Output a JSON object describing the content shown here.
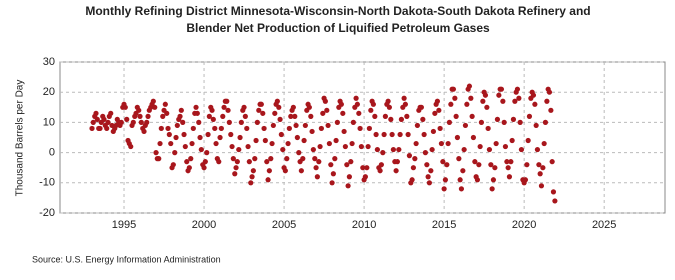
{
  "chart_data": {
    "type": "scatter",
    "title": [
      "Monthly Refining District Minnesota-Wisconsin-North Dakota-South Dakota Refinery and",
      "Blender Net Production of Liquified Petroleum Gases"
    ],
    "y_label": "Thousand Barrels per Day",
    "source": "Source: U.S. Energy Information Administration",
    "xlim": [
      1991,
      2028.8
    ],
    "xticks": [
      1995,
      2000,
      2005,
      2010,
      2015,
      2020,
      2025
    ],
    "ylim": [
      -20,
      30
    ],
    "yticks": [
      -20,
      -10,
      0,
      10,
      20,
      30
    ],
    "grid": true,
    "series": [
      {
        "color": "#a8161c",
        "x": [
          1993.0,
          1993.08,
          1993.17,
          1993.25,
          1993.33,
          1993.42,
          1993.5,
          1993.58,
          1993.67,
          1993.75,
          1993.83,
          1993.92,
          1994.0,
          1994.08,
          1994.17,
          1994.25,
          1994.33,
          1994.42,
          1994.5,
          1994.58,
          1994.67,
          1994.75,
          1994.83,
          1994.92,
          1995.0,
          1995.08,
          1995.17,
          1995.25,
          1995.33,
          1995.42,
          1995.5,
          1995.58,
          1995.67,
          1995.75,
          1995.83,
          1995.92,
          1996.0,
          1996.08,
          1996.17,
          1996.25,
          1996.33,
          1996.42,
          1996.5,
          1996.58,
          1996.67,
          1996.75,
          1996.83,
          1996.92,
          1997.0,
          1997.08,
          1997.17,
          1997.25,
          1997.33,
          1997.42,
          1997.5,
          1997.58,
          1997.67,
          1997.75,
          1997.83,
          1997.92,
          1998.0,
          1998.08,
          1998.17,
          1998.25,
          1998.33,
          1998.42,
          1998.5,
          1998.58,
          1998.67,
          1998.75,
          1998.83,
          1998.92,
          1999.0,
          1999.08,
          1999.17,
          1999.25,
          1999.33,
          1999.42,
          1999.5,
          1999.58,
          1999.67,
          1999.75,
          1999.83,
          1999.92,
          2000.0,
          2000.08,
          2000.17,
          2000.25,
          2000.33,
          2000.42,
          2000.5,
          2000.58,
          2000.67,
          2000.75,
          2000.83,
          2000.92,
          2001.0,
          2001.08,
          2001.17,
          2001.25,
          2001.33,
          2001.42,
          2001.5,
          2001.58,
          2001.67,
          2001.75,
          2001.83,
          2001.92,
          2002.0,
          2002.08,
          2002.17,
          2002.25,
          2002.33,
          2002.42,
          2002.5,
          2002.58,
          2002.67,
          2002.75,
          2002.83,
          2002.92,
          2003.0,
          2003.08,
          2003.17,
          2003.25,
          2003.33,
          2003.42,
          2003.5,
          2003.58,
          2003.67,
          2003.75,
          2003.83,
          2003.92,
          2004.0,
          2004.08,
          2004.17,
          2004.25,
          2004.33,
          2004.42,
          2004.5,
          2004.58,
          2004.67,
          2004.75,
          2004.83,
          2004.92,
          2005.0,
          2005.08,
          2005.17,
          2005.25,
          2005.33,
          2005.42,
          2005.5,
          2005.58,
          2005.67,
          2005.75,
          2005.83,
          2005.92,
          2006.0,
          2006.08,
          2006.17,
          2006.25,
          2006.33,
          2006.42,
          2006.5,
          2006.58,
          2006.67,
          2006.75,
          2006.83,
          2006.92,
          2007.0,
          2007.08,
          2007.17,
          2007.25,
          2007.33,
          2007.42,
          2007.5,
          2007.58,
          2007.67,
          2007.75,
          2007.83,
          2007.92,
          2008.0,
          2008.08,
          2008.17,
          2008.25,
          2008.33,
          2008.42,
          2008.5,
          2008.58,
          2008.67,
          2008.75,
          2008.83,
          2008.92,
          2009.0,
          2009.08,
          2009.17,
          2009.25,
          2009.33,
          2009.42,
          2009.5,
          2009.58,
          2009.67,
          2009.75,
          2009.83,
          2009.92,
          2010.0,
          2010.08,
          2010.17,
          2010.25,
          2010.33,
          2010.42,
          2010.5,
          2010.58,
          2010.67,
          2010.75,
          2010.83,
          2010.92,
          2011.0,
          2011.08,
          2011.17,
          2011.25,
          2011.33,
          2011.42,
          2011.5,
          2011.58,
          2011.67,
          2011.75,
          2011.83,
          2011.92,
          2012.0,
          2012.08,
          2012.17,
          2012.25,
          2012.33,
          2012.42,
          2012.5,
          2012.58,
          2012.67,
          2012.75,
          2012.83,
          2012.92,
          2013.0,
          2013.08,
          2013.17,
          2013.25,
          2013.33,
          2013.42,
          2013.5,
          2013.58,
          2013.67,
          2013.75,
          2013.83,
          2013.92,
          2014.0,
          2014.08,
          2014.17,
          2014.25,
          2014.33,
          2014.42,
          2014.5,
          2014.58,
          2014.67,
          2014.75,
          2014.83,
          2014.92,
          2015.0,
          2015.08,
          2015.17,
          2015.25,
          2015.33,
          2015.42,
          2015.5,
          2015.58,
          2015.67,
          2015.75,
          2015.83,
          2015.92,
          2016.0,
          2016.08,
          2016.17,
          2016.25,
          2016.33,
          2016.42,
          2016.5,
          2016.58,
          2016.67,
          2016.75,
          2016.83,
          2016.92,
          2017.0,
          2017.08,
          2017.17,
          2017.25,
          2017.33,
          2017.42,
          2017.5,
          2017.58,
          2017.67,
          2017.75,
          2017.83,
          2017.92,
          2018.0,
          2018.08,
          2018.17,
          2018.25,
          2018.33,
          2018.42,
          2018.5,
          2018.58,
          2018.67,
          2018.75,
          2018.83,
          2018.92,
          2019.0,
          2019.08,
          2019.17,
          2019.25,
          2019.33,
          2019.42,
          2019.5,
          2019.58,
          2019.67,
          2019.75,
          2019.83,
          2019.92,
          2020.0,
          2020.08,
          2020.17,
          2020.25,
          2020.33,
          2020.42,
          2020.5,
          2020.58,
          2020.67,
          2020.75,
          2020.83,
          2020.92,
          2021.0,
          2021.08,
          2021.17,
          2021.25,
          2021.33,
          2021.42,
          2021.5,
          2021.58,
          2021.67,
          2021.75,
          2021.83,
          2021.92
        ],
        "values": [
          8,
          10,
          12,
          13,
          11,
          8,
          8,
          10,
          12,
          11,
          9,
          8,
          10,
          12,
          13,
          9,
          7,
          8,
          9,
          11,
          10,
          9,
          10,
          15,
          16,
          15,
          11,
          4,
          3,
          2,
          9,
          10,
          12,
          13,
          15,
          14,
          12,
          10,
          8,
          7,
          9,
          10,
          12,
          14,
          15,
          16,
          17,
          15,
          0,
          -2,
          -2,
          3,
          8,
          12,
          14,
          16,
          13,
          8,
          6,
          3,
          -5,
          -4,
          0,
          5,
          9,
          11,
          12,
          14,
          10,
          6,
          2,
          -3,
          -6,
          -5,
          -2,
          3,
          8,
          13,
          15,
          13,
          10,
          5,
          1,
          -4,
          -5,
          -3,
          0,
          6,
          12,
          15,
          14,
          11,
          8,
          3,
          -2,
          -3,
          5,
          8,
          12,
          15,
          17,
          17,
          14,
          10,
          6,
          2,
          -2,
          -7,
          -5,
          -3,
          1,
          5,
          10,
          14,
          15,
          12,
          8,
          2,
          -3,
          -10,
          -8,
          -6,
          -2,
          4,
          10,
          14,
          16,
          16,
          13,
          8,
          4,
          -3,
          -9,
          -6,
          -2,
          3,
          9,
          13,
          16,
          17,
          15,
          11,
          6,
          1,
          -5,
          -6,
          -2,
          3,
          8,
          12,
          14,
          15,
          12,
          9,
          5,
          0,
          -3,
          -6,
          -2,
          4,
          9,
          14,
          16,
          15,
          12,
          7,
          1,
          -2,
          -5,
          -8,
          -3,
          2,
          8,
          13,
          18,
          17,
          14,
          9,
          3,
          -4,
          -10,
          -7,
          -2,
          4,
          10,
          15,
          17,
          16,
          13,
          7,
          2,
          -4,
          -11,
          -8,
          -3,
          3,
          10,
          15,
          18,
          16,
          13,
          8,
          2,
          -5,
          -9,
          -8,
          -5,
          2,
          8,
          14,
          17,
          16,
          12,
          6,
          1,
          -5,
          -6,
          -4,
          0,
          6,
          12,
          16,
          17,
          15,
          11,
          6,
          1,
          -3,
          -6,
          -3,
          1,
          6,
          11,
          15,
          18,
          16,
          12,
          6,
          -1,
          -10,
          -9,
          -5,
          -2,
          3,
          9,
          14,
          15,
          15,
          11,
          6,
          0,
          -4,
          -8,
          -10,
          -6,
          1,
          7,
          13,
          16,
          17,
          14,
          8,
          3,
          -3,
          -12,
          -9,
          -4,
          3,
          10,
          16,
          21,
          21,
          18,
          12,
          5,
          -2,
          -9,
          -12,
          -6,
          1,
          9,
          16,
          21,
          22,
          18,
          12,
          5,
          -3,
          -8,
          -9,
          -4,
          2,
          10,
          17,
          20,
          19,
          15,
          8,
          1,
          -4,
          -12,
          -9,
          -5,
          3,
          11,
          19,
          21,
          21,
          17,
          10,
          2,
          -3,
          -5,
          -8,
          -3,
          4,
          11,
          17,
          20,
          21,
          18,
          10,
          1,
          -9,
          -10,
          -9,
          -4,
          4,
          12,
          18,
          20,
          19,
          16,
          9,
          1,
          -4,
          -7,
          -11,
          -5,
          3,
          10,
          17,
          21,
          20,
          14,
          -3,
          -13,
          -16
        ]
      }
    ]
  }
}
